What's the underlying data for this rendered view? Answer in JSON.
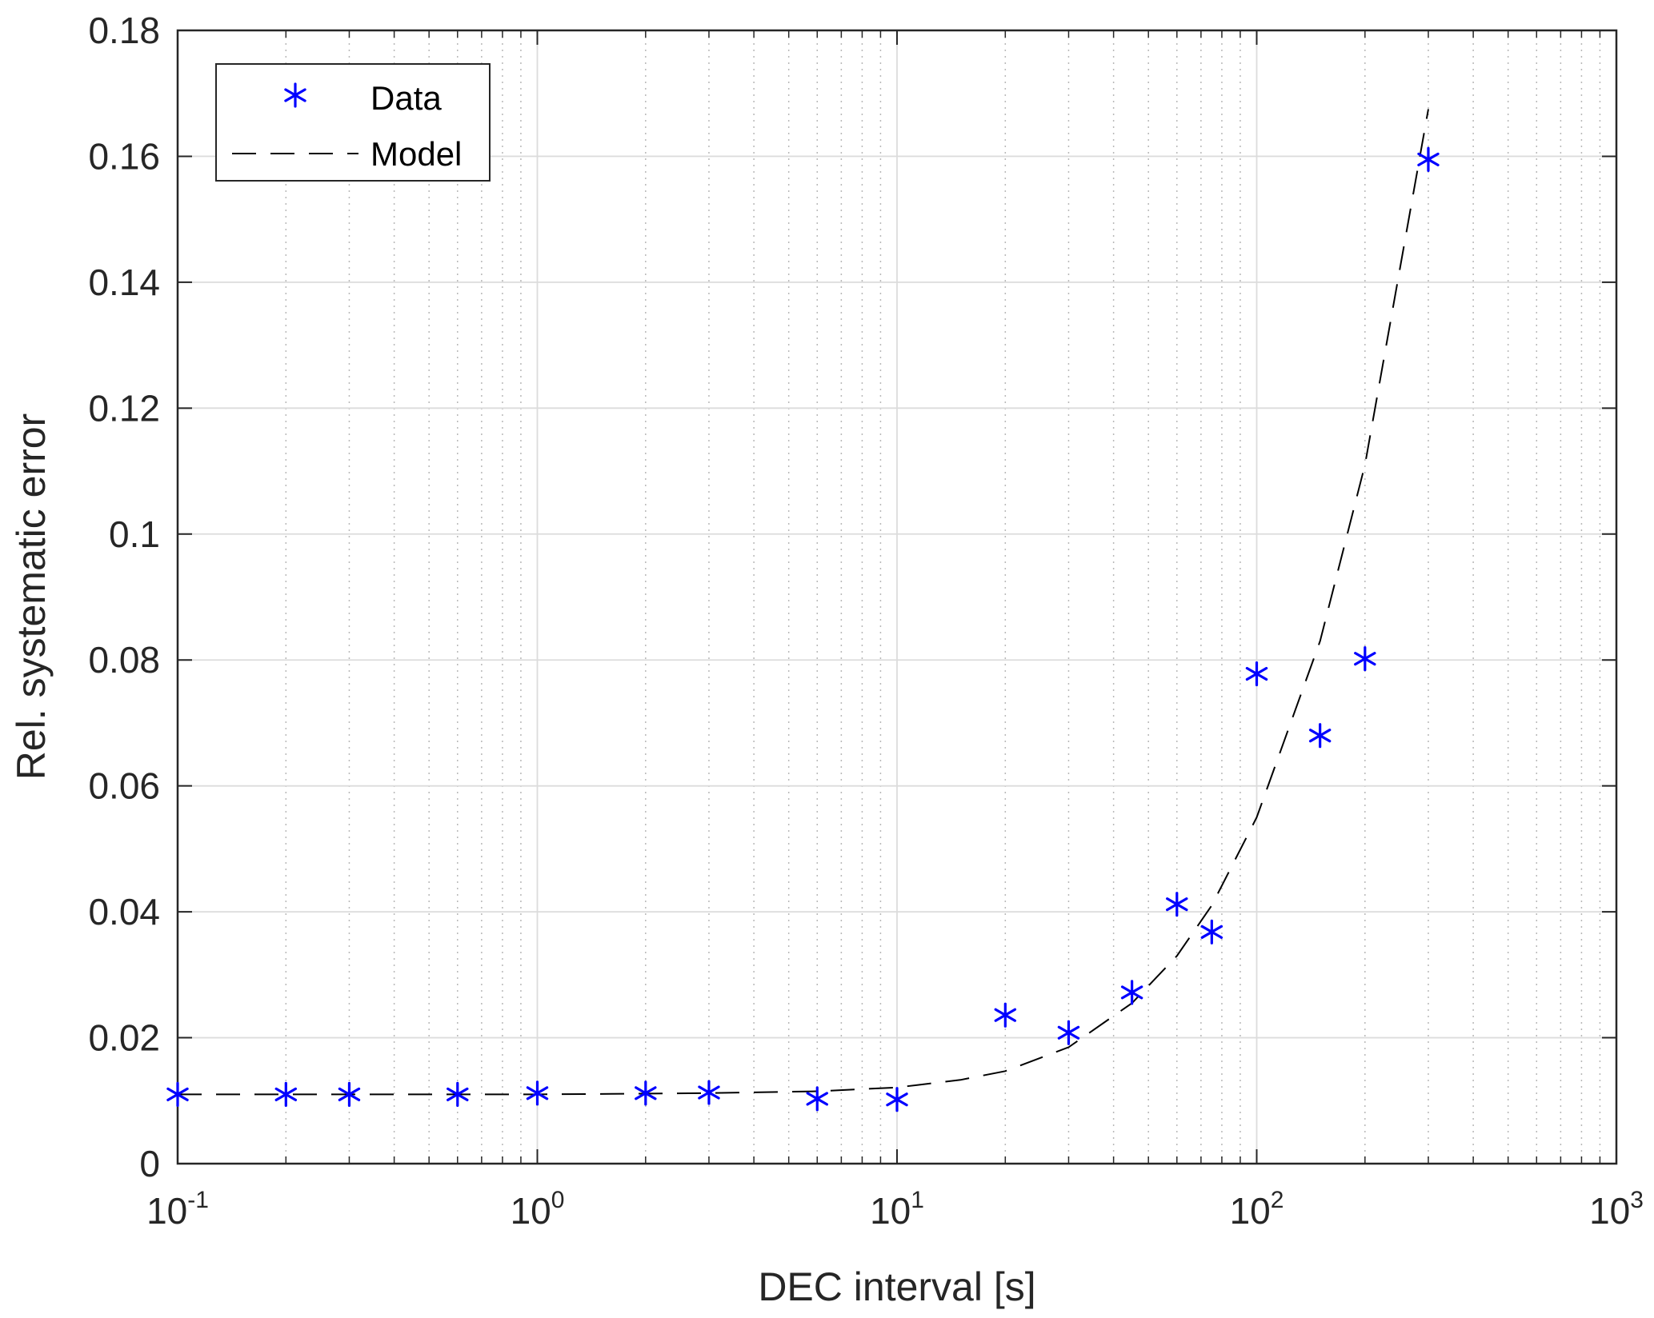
{
  "chart_data": {
    "type": "scatter",
    "title": "",
    "xlabel": "DEC interval [s]",
    "ylabel": "Rel. systematic error",
    "xscale": "log",
    "xlim": [
      0.1,
      1000
    ],
    "ylim": [
      0,
      0.18
    ],
    "x_ticks": [
      {
        "base": "10",
        "exp": "-1",
        "value": 0.1
      },
      {
        "base": "10",
        "exp": "0",
        "value": 1
      },
      {
        "base": "10",
        "exp": "1",
        "value": 10
      },
      {
        "base": "10",
        "exp": "2",
        "value": 100
      },
      {
        "base": "10",
        "exp": "3",
        "value": 1000
      }
    ],
    "y_ticks": [
      {
        "label": "0",
        "value": 0
      },
      {
        "label": "0.02",
        "value": 0.02
      },
      {
        "label": "0.04",
        "value": 0.04
      },
      {
        "label": "0.06",
        "value": 0.06
      },
      {
        "label": "0.08",
        "value": 0.08
      },
      {
        "label": "0.1",
        "value": 0.1
      },
      {
        "label": "0.12",
        "value": 0.12
      },
      {
        "label": "0.14",
        "value": 0.14
      },
      {
        "label": "0.16",
        "value": 0.16
      },
      {
        "label": "0.18",
        "value": 0.18
      }
    ],
    "grid": true,
    "legend_position": "top-left",
    "series": [
      {
        "name": "Data",
        "kind": "marker",
        "marker": "asterisk",
        "color": "#0000ff",
        "points": [
          {
            "x": 0.1,
            "y": 0.011
          },
          {
            "x": 0.2,
            "y": 0.011
          },
          {
            "x": 0.3,
            "y": 0.011
          },
          {
            "x": 0.6,
            "y": 0.011
          },
          {
            "x": 1,
            "y": 0.0112
          },
          {
            "x": 2,
            "y": 0.0112
          },
          {
            "x": 3,
            "y": 0.0113
          },
          {
            "x": 6,
            "y": 0.0103
          },
          {
            "x": 10,
            "y": 0.0102
          },
          {
            "x": 20,
            "y": 0.0236
          },
          {
            "x": 30,
            "y": 0.0208
          },
          {
            "x": 45,
            "y": 0.0272
          },
          {
            "x": 60,
            "y": 0.0412
          },
          {
            "x": 75,
            "y": 0.0368
          },
          {
            "x": 100,
            "y": 0.0778
          },
          {
            "x": 150,
            "y": 0.068
          },
          {
            "x": 200,
            "y": 0.0802
          },
          {
            "x": 300,
            "y": 0.1595
          }
        ]
      },
      {
        "name": "Model",
        "kind": "line",
        "line_style": "dashed",
        "color": "#000000",
        "points": [
          {
            "x": 0.1,
            "y": 0.011
          },
          {
            "x": 1,
            "y": 0.011
          },
          {
            "x": 3,
            "y": 0.0112
          },
          {
            "x": 6,
            "y": 0.0115
          },
          {
            "x": 10,
            "y": 0.0121
          },
          {
            "x": 15,
            "y": 0.0133
          },
          {
            "x": 20,
            "y": 0.0147
          },
          {
            "x": 30,
            "y": 0.0185
          },
          {
            "x": 45,
            "y": 0.0255
          },
          {
            "x": 60,
            "y": 0.033
          },
          {
            "x": 75,
            "y": 0.041
          },
          {
            "x": 100,
            "y": 0.055
          },
          {
            "x": 150,
            "y": 0.083
          },
          {
            "x": 200,
            "y": 0.111
          },
          {
            "x": 300,
            "y": 0.1675
          }
        ]
      }
    ]
  }
}
